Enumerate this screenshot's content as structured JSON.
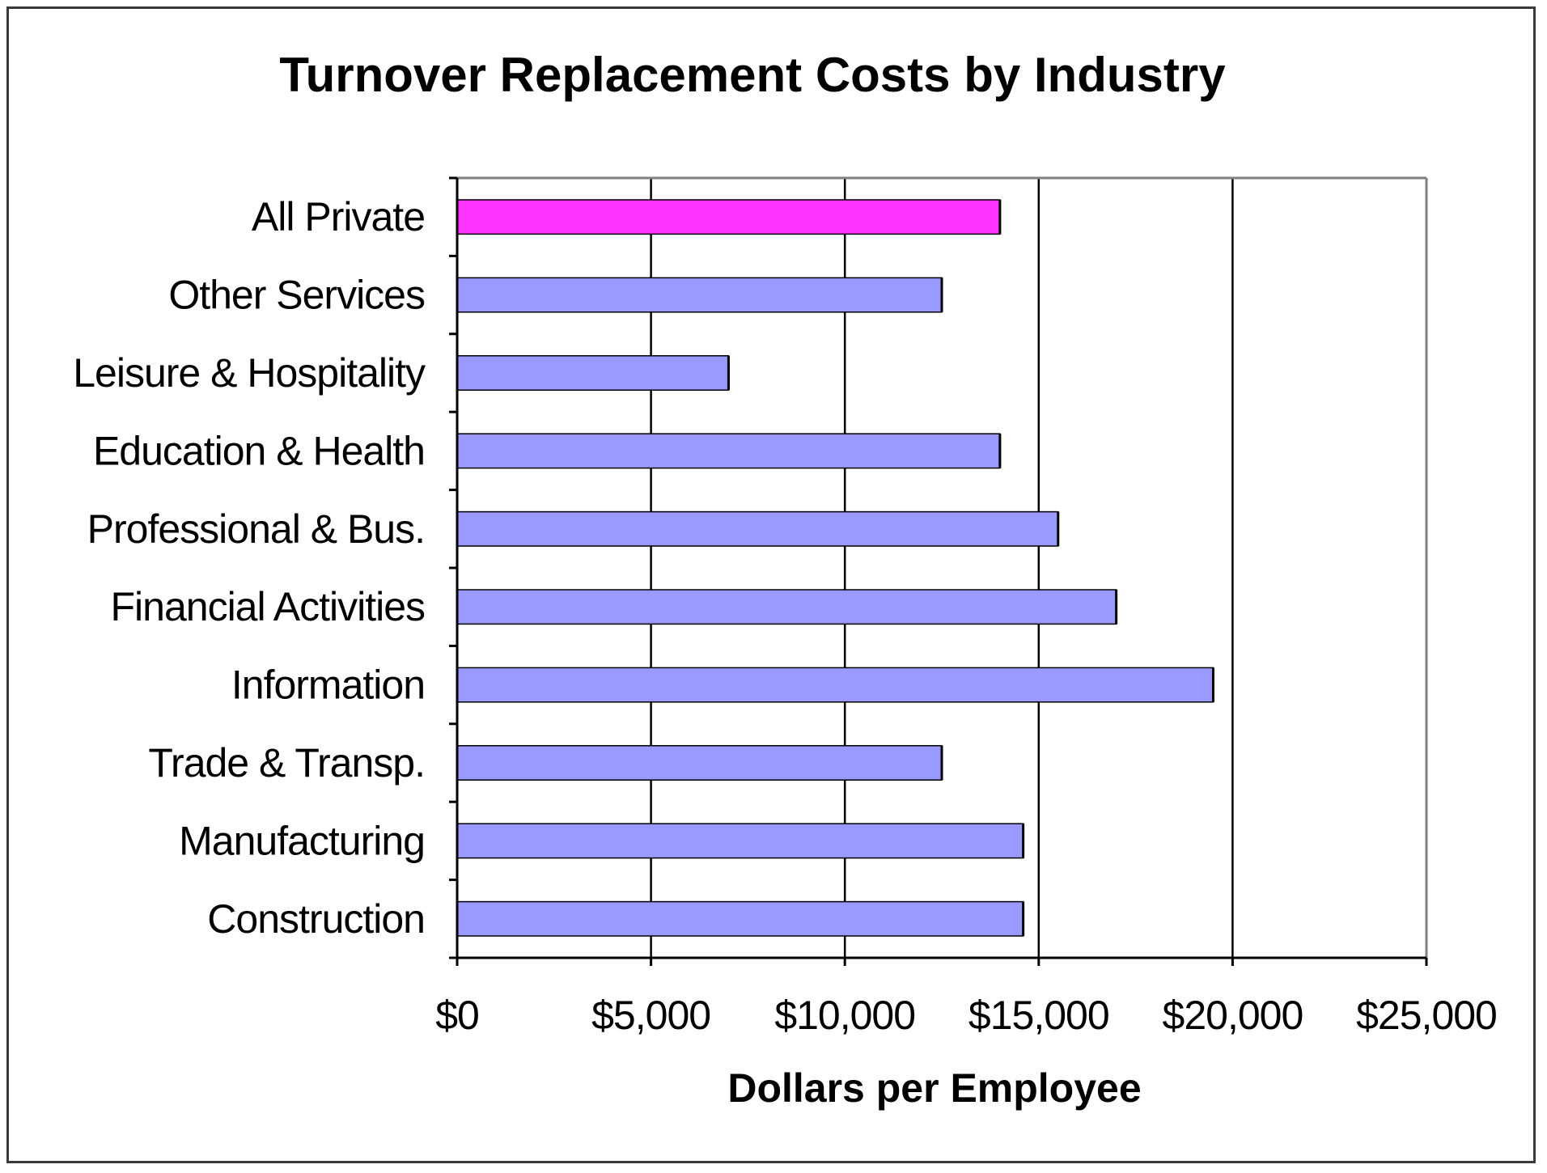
{
  "chart_data": {
    "type": "bar",
    "orientation": "horizontal",
    "title": "Turnover Replacement Costs by Industry",
    "xlabel": "Dollars per Employee",
    "ylabel": "",
    "categories": [
      "All Private",
      "Other Services",
      "Leisure & Hospitality",
      "Education & Health",
      "Professional & Bus.",
      "Financial Activities",
      "Information",
      "Trade & Transp.",
      "Manufacturing",
      "Construction"
    ],
    "values": [
      14000,
      12500,
      7000,
      14000,
      15500,
      17000,
      19500,
      12500,
      14600,
      14600
    ],
    "xlim": [
      0,
      25000
    ],
    "x_ticks": [
      0,
      5000,
      10000,
      15000,
      20000,
      25000
    ],
    "x_tick_labels": [
      "$0",
      "$5,000",
      "$10,000",
      "$15,000",
      "$20,000",
      "$25,000"
    ],
    "grid": "vertical",
    "legend": "none",
    "highlight_category": "All Private",
    "colors": {
      "bar": "#9999ff",
      "highlight_bar": "#ff33ff",
      "bar_outline": "#000000",
      "gridline": "#000000",
      "plot_border": "#808080",
      "frame": "#3a3a3a"
    }
  }
}
